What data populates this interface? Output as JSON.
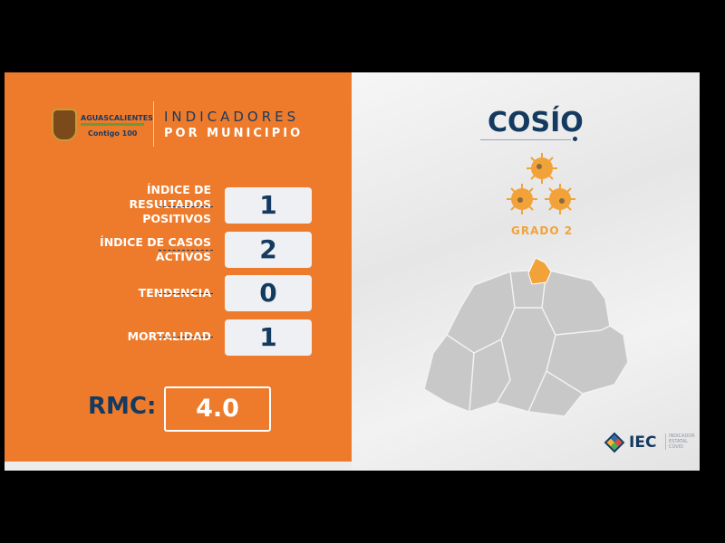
{
  "logo": {
    "state": "AGUASCALIENTES",
    "tagline": "Contigo 100"
  },
  "header": {
    "line1": "INDICADORES",
    "line2": "POR MUNICIPIO"
  },
  "indicators": [
    {
      "label": "ÍNDICE DE RESULTADOS POSITIVOS",
      "value": "1"
    },
    {
      "label": "ÍNDICE DE CASOS ACTIVOS",
      "value": "2"
    },
    {
      "label": "TENDENCIA",
      "value": "0"
    },
    {
      "label": "MORTALIDAD",
      "value": "1"
    }
  ],
  "rmc": {
    "label": "RMC:",
    "value": "4.0"
  },
  "municipality": {
    "name": "COSÍO",
    "grade": "GRADO 2",
    "virus_icons": 3
  },
  "iec": {
    "name": "IEC",
    "subtitle": "INDICADOR ESTATAL COVID"
  },
  "colors": {
    "orange": "#ee7b2b",
    "navy": "#153a60",
    "virus": "#f1a33a",
    "map": "#c8c8c8"
  }
}
